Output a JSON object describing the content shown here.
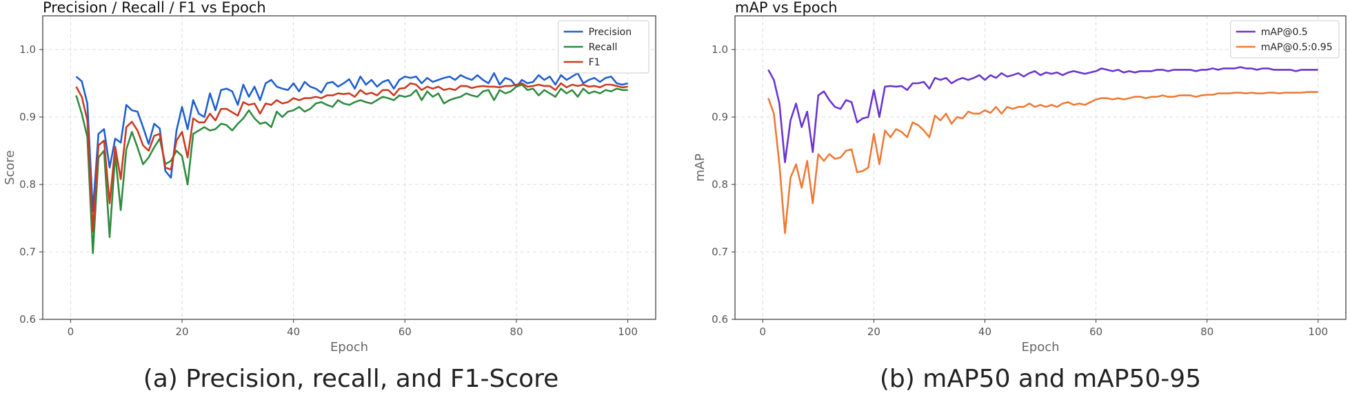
{
  "chart_data": [
    {
      "type": "line",
      "title": "Precision / Recall / F1 vs Epoch",
      "xlabel": "Epoch",
      "ylabel": "Score",
      "xlim": [
        -5,
        105
      ],
      "ylim": [
        0.6,
        1.05
      ],
      "xticks": [
        "0",
        "20",
        "40",
        "60",
        "80",
        "100"
      ],
      "yticks": [
        "0.6",
        "0.7",
        "0.8",
        "0.9",
        "1.0"
      ],
      "grid": true,
      "legend_position": "top-right",
      "caption": "(a) Precision, recall, and F1-Score",
      "x": [
        1,
        2,
        3,
        4,
        5,
        6,
        7,
        8,
        9,
        10,
        11,
        12,
        13,
        14,
        15,
        16,
        17,
        18,
        19,
        20,
        21,
        22,
        23,
        24,
        25,
        26,
        27,
        28,
        29,
        30,
        31,
        32,
        33,
        34,
        35,
        36,
        37,
        38,
        39,
        40,
        41,
        42,
        43,
        44,
        45,
        46,
        47,
        48,
        49,
        50,
        51,
        52,
        53,
        54,
        55,
        56,
        57,
        58,
        59,
        60,
        61,
        62,
        63,
        64,
        65,
        66,
        67,
        68,
        69,
        70,
        71,
        72,
        73,
        74,
        75,
        76,
        77,
        78,
        79,
        80,
        81,
        82,
        83,
        84,
        85,
        86,
        87,
        88,
        89,
        90,
        91,
        92,
        93,
        94,
        95,
        96,
        97,
        98,
        99,
        100
      ],
      "series": [
        {
          "name": "Precision",
          "color": "#1f5fcf",
          "values": [
            0.96,
            0.953,
            0.92,
            0.76,
            0.875,
            0.882,
            0.825,
            0.868,
            0.862,
            0.918,
            0.91,
            0.908,
            0.885,
            0.86,
            0.89,
            0.883,
            0.82,
            0.81,
            0.88,
            0.915,
            0.882,
            0.925,
            0.905,
            0.9,
            0.935,
            0.91,
            0.94,
            0.942,
            0.938,
            0.918,
            0.948,
            0.93,
            0.945,
            0.925,
            0.95,
            0.955,
            0.945,
            0.942,
            0.94,
            0.95,
            0.938,
            0.952,
            0.945,
            0.942,
            0.936,
            0.95,
            0.952,
            0.945,
            0.95,
            0.956,
            0.942,
            0.96,
            0.948,
            0.955,
            0.945,
            0.952,
            0.955,
            0.942,
            0.955,
            0.96,
            0.958,
            0.96,
            0.95,
            0.958,
            0.952,
            0.955,
            0.958,
            0.96,
            0.955,
            0.962,
            0.958,
            0.955,
            0.962,
            0.955,
            0.95,
            0.965,
            0.948,
            0.958,
            0.955,
            0.945,
            0.955,
            0.95,
            0.952,
            0.962,
            0.955,
            0.96,
            0.948,
            0.962,
            0.955,
            0.96,
            0.965,
            0.95,
            0.955,
            0.958,
            0.952,
            0.958,
            0.96,
            0.95,
            0.948,
            0.95
          ]
        },
        {
          "name": "Recall",
          "color": "#2e8b3e",
          "values": [
            0.932,
            0.905,
            0.87,
            0.698,
            0.84,
            0.85,
            0.722,
            0.845,
            0.762,
            0.852,
            0.878,
            0.855,
            0.83,
            0.84,
            0.855,
            0.868,
            0.83,
            0.835,
            0.85,
            0.842,
            0.8,
            0.875,
            0.88,
            0.885,
            0.88,
            0.882,
            0.89,
            0.888,
            0.88,
            0.89,
            0.898,
            0.91,
            0.898,
            0.89,
            0.892,
            0.885,
            0.908,
            0.9,
            0.908,
            0.91,
            0.915,
            0.908,
            0.912,
            0.92,
            0.922,
            0.918,
            0.915,
            0.925,
            0.92,
            0.918,
            0.922,
            0.925,
            0.922,
            0.92,
            0.925,
            0.93,
            0.928,
            0.925,
            0.932,
            0.93,
            0.932,
            0.94,
            0.925,
            0.938,
            0.93,
            0.935,
            0.92,
            0.925,
            0.928,
            0.93,
            0.935,
            0.932,
            0.93,
            0.938,
            0.94,
            0.925,
            0.94,
            0.935,
            0.938,
            0.945,
            0.948,
            0.94,
            0.942,
            0.932,
            0.94,
            0.935,
            0.93,
            0.942,
            0.935,
            0.94,
            0.93,
            0.942,
            0.935,
            0.938,
            0.935,
            0.94,
            0.938,
            0.942,
            0.94,
            0.94
          ]
        },
        {
          "name": "F1",
          "color": "#cc3a1f",
          "values": [
            0.945,
            0.93,
            0.895,
            0.73,
            0.858,
            0.865,
            0.772,
            0.856,
            0.808,
            0.885,
            0.893,
            0.88,
            0.858,
            0.85,
            0.872,
            0.875,
            0.825,
            0.822,
            0.865,
            0.878,
            0.84,
            0.898,
            0.892,
            0.892,
            0.905,
            0.895,
            0.912,
            0.912,
            0.907,
            0.902,
            0.922,
            0.918,
            0.92,
            0.905,
            0.92,
            0.918,
            0.925,
            0.92,
            0.922,
            0.928,
            0.925,
            0.928,
            0.928,
            0.93,
            0.928,
            0.932,
            0.932,
            0.935,
            0.934,
            0.935,
            0.93,
            0.94,
            0.934,
            0.936,
            0.932,
            0.94,
            0.94,
            0.932,
            0.942,
            0.943,
            0.95,
            0.948,
            0.94,
            0.945,
            0.942,
            0.945,
            0.94,
            0.942,
            0.94,
            0.946,
            0.946,
            0.943,
            0.945,
            0.946,
            0.945,
            0.945,
            0.944,
            0.946,
            0.946,
            0.948,
            0.95,
            0.945,
            0.946,
            0.948,
            0.946,
            0.946,
            0.94,
            0.95,
            0.944,
            0.948,
            0.946,
            0.948,
            0.945,
            0.946,
            0.944,
            0.948,
            0.948,
            0.946,
            0.944,
            0.945
          ]
        }
      ]
    },
    {
      "type": "line",
      "title": "mAP vs Epoch",
      "xlabel": "Epoch",
      "ylabel": "mAP",
      "xlim": [
        -5,
        105
      ],
      "ylim": [
        0.6,
        1.05
      ],
      "xticks": [
        "0",
        "20",
        "40",
        "60",
        "80",
        "100"
      ],
      "yticks": [
        "0.6",
        "0.7",
        "0.8",
        "0.9",
        "1.0"
      ],
      "grid": true,
      "legend_position": "top-right",
      "caption": "(b) mAP50 and mAP50-95",
      "x": [
        1,
        2,
        3,
        4,
        5,
        6,
        7,
        8,
        9,
        10,
        11,
        12,
        13,
        14,
        15,
        16,
        17,
        18,
        19,
        20,
        21,
        22,
        23,
        24,
        25,
        26,
        27,
        28,
        29,
        30,
        31,
        32,
        33,
        34,
        35,
        36,
        37,
        38,
        39,
        40,
        41,
        42,
        43,
        44,
        45,
        46,
        47,
        48,
        49,
        50,
        51,
        52,
        53,
        54,
        55,
        56,
        57,
        58,
        59,
        60,
        61,
        62,
        63,
        64,
        65,
        66,
        67,
        68,
        69,
        70,
        71,
        72,
        73,
        74,
        75,
        76,
        77,
        78,
        79,
        80,
        81,
        82,
        83,
        84,
        85,
        86,
        87,
        88,
        89,
        90,
        91,
        92,
        93,
        94,
        95,
        96,
        97,
        98,
        99,
        100
      ],
      "series": [
        {
          "name": "mAP@0.5",
          "color": "#6a34d0",
          "values": [
            0.97,
            0.955,
            0.92,
            0.833,
            0.895,
            0.92,
            0.885,
            0.908,
            0.848,
            0.932,
            0.938,
            0.925,
            0.915,
            0.912,
            0.925,
            0.922,
            0.892,
            0.898,
            0.9,
            0.94,
            0.9,
            0.945,
            0.946,
            0.945,
            0.946,
            0.94,
            0.95,
            0.95,
            0.952,
            0.942,
            0.958,
            0.955,
            0.958,
            0.95,
            0.955,
            0.958,
            0.955,
            0.958,
            0.962,
            0.955,
            0.962,
            0.958,
            0.965,
            0.96,
            0.962,
            0.965,
            0.96,
            0.965,
            0.968,
            0.962,
            0.966,
            0.964,
            0.966,
            0.962,
            0.966,
            0.968,
            0.966,
            0.964,
            0.966,
            0.968,
            0.972,
            0.97,
            0.968,
            0.97,
            0.966,
            0.968,
            0.966,
            0.968,
            0.968,
            0.968,
            0.97,
            0.97,
            0.968,
            0.97,
            0.97,
            0.97,
            0.97,
            0.968,
            0.97,
            0.97,
            0.972,
            0.97,
            0.972,
            0.972,
            0.972,
            0.974,
            0.972,
            0.972,
            0.97,
            0.972,
            0.972,
            0.97,
            0.97,
            0.97,
            0.97,
            0.968,
            0.97,
            0.97,
            0.97,
            0.97
          ]
        },
        {
          "name": "mAP@0.5:0.95",
          "color": "#ee7a35",
          "values": [
            0.928,
            0.905,
            0.83,
            0.728,
            0.81,
            0.83,
            0.795,
            0.835,
            0.772,
            0.845,
            0.835,
            0.845,
            0.838,
            0.84,
            0.85,
            0.852,
            0.818,
            0.82,
            0.825,
            0.875,
            0.83,
            0.88,
            0.87,
            0.882,
            0.878,
            0.87,
            0.892,
            0.888,
            0.88,
            0.87,
            0.902,
            0.895,
            0.905,
            0.89,
            0.9,
            0.898,
            0.908,
            0.905,
            0.905,
            0.91,
            0.906,
            0.915,
            0.905,
            0.915,
            0.912,
            0.915,
            0.915,
            0.92,
            0.915,
            0.918,
            0.915,
            0.918,
            0.915,
            0.92,
            0.922,
            0.918,
            0.92,
            0.918,
            0.922,
            0.926,
            0.928,
            0.928,
            0.926,
            0.928,
            0.926,
            0.928,
            0.93,
            0.93,
            0.928,
            0.93,
            0.93,
            0.932,
            0.93,
            0.93,
            0.932,
            0.932,
            0.932,
            0.93,
            0.932,
            0.933,
            0.933,
            0.935,
            0.935,
            0.935,
            0.936,
            0.936,
            0.935,
            0.936,
            0.935,
            0.935,
            0.936,
            0.936,
            0.935,
            0.936,
            0.936,
            0.936,
            0.936,
            0.937,
            0.937,
            0.937
          ]
        }
      ]
    }
  ]
}
